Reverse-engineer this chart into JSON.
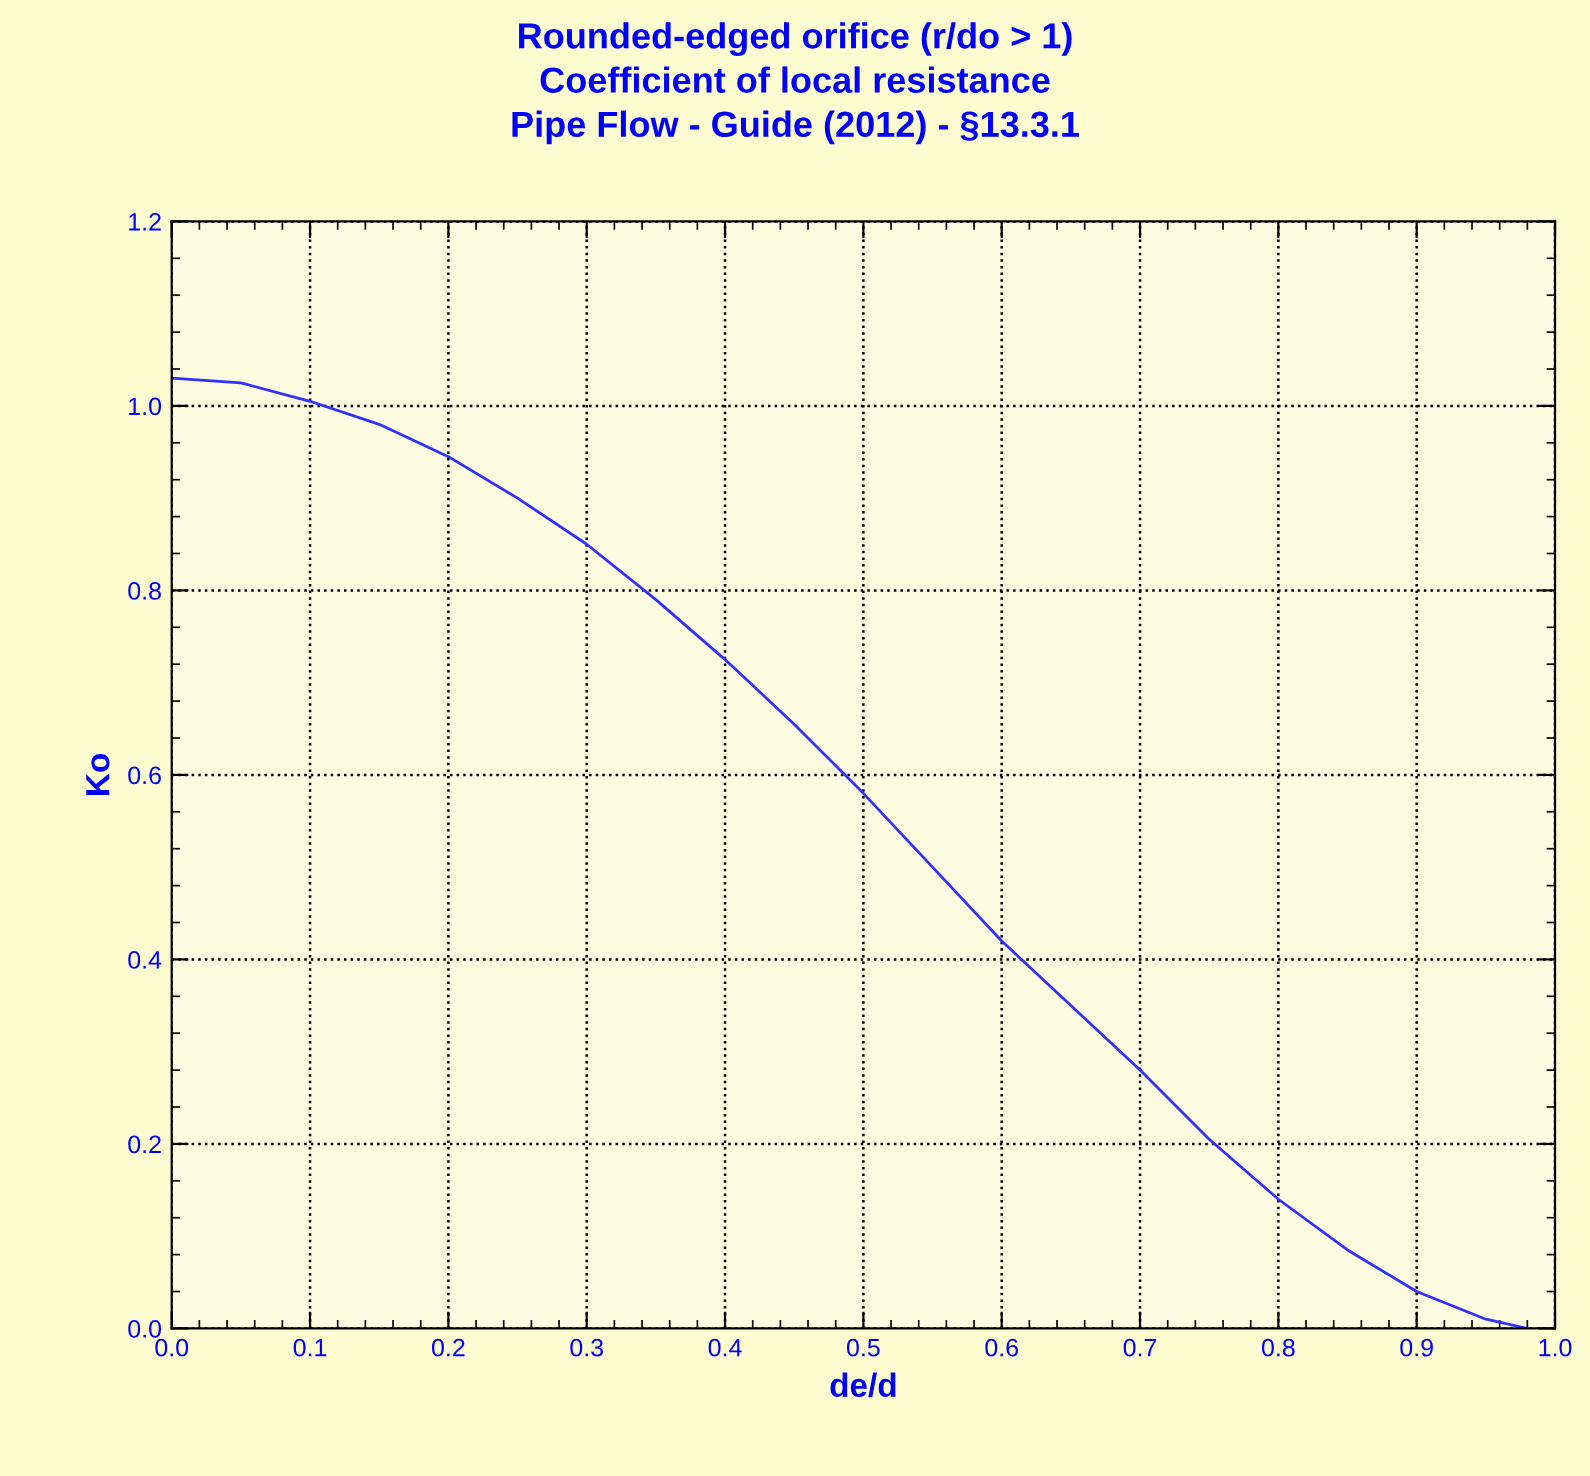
{
  "chart_data": {
    "type": "line",
    "title": "Rounded-edged orifice (r/do > 1)\nCoefficient of local resistance\nPipe Flow - Guide (2012) - §13.3.1",
    "xlabel": "de/d",
    "ylabel": "Ko",
    "x": [
      0,
      0.05,
      0.1,
      0.15,
      0.2,
      0.25,
      0.3,
      0.35,
      0.4,
      0.45,
      0.5,
      0.55,
      0.6,
      0.65,
      0.7,
      0.75,
      0.8,
      0.85,
      0.9,
      0.95,
      0.98
    ],
    "series": [
      {
        "color": "#3030ff",
        "values": [
          1.03,
          1.025,
          1.005,
          0.98,
          0.945,
          0.9,
          0.85,
          0.79,
          0.725,
          0.655,
          0.58,
          0.5,
          0.42,
          0.35,
          0.28,
          0.205,
          0.14,
          0.085,
          0.04,
          0.01,
          0.0
        ]
      }
    ],
    "xlim": [
      0,
      1
    ],
    "ylim": [
      0,
      1.2
    ],
    "xticks": [
      {
        "value": 0,
        "label": "0.0"
      },
      {
        "value": 0.1,
        "label": "0.1"
      },
      {
        "value": 0.2,
        "label": "0.2"
      },
      {
        "value": 0.3,
        "label": "0.3"
      },
      {
        "value": 0.4,
        "label": "0.4"
      },
      {
        "value": 0.5,
        "label": "0.5"
      },
      {
        "value": 0.6,
        "label": "0.6"
      },
      {
        "value": 0.7,
        "label": "0.7"
      },
      {
        "value": 0.8,
        "label": "0.8"
      },
      {
        "value": 0.9,
        "label": "0.9"
      },
      {
        "value": 1,
        "label": "1.0"
      }
    ],
    "yticks": [
      {
        "value": 0,
        "label": "0.0"
      },
      {
        "value": 0.2,
        "label": "0.2"
      },
      {
        "value": 0.4,
        "label": "0.4"
      },
      {
        "value": 0.6,
        "label": "0.6"
      },
      {
        "value": 0.8,
        "label": "0.8"
      },
      {
        "value": 1,
        "label": "1.0"
      },
      {
        "value": 1.2,
        "label": "1.2"
      }
    ],
    "grid": true,
    "marker": "none",
    "line_style": "solid"
  }
}
